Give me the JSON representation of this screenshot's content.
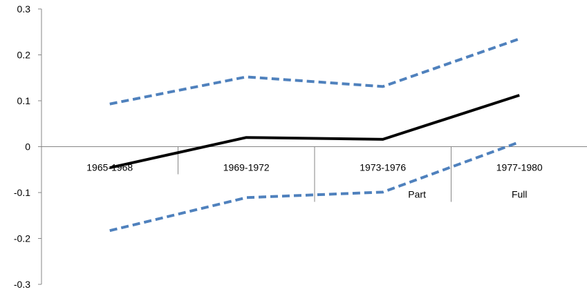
{
  "chart_data": {
    "type": "line",
    "categories": [
      "1965-1968",
      "1969-1972",
      "1973-1976",
      "1977-1980"
    ],
    "group_labels": [
      {
        "label": "Part",
        "spans": [
          "1973-1976"
        ]
      },
      {
        "label": "Full",
        "spans": [
          "1977-1980"
        ]
      }
    ],
    "series": [
      {
        "values": [
          0.093,
          0.152,
          0.131,
          0.235
        ],
        "color": "#4F81BD",
        "style": "dashed",
        "role": "upper-bound"
      },
      {
        "values": [
          -0.046,
          0.02,
          0.016,
          0.112
        ],
        "color": "#000000",
        "style": "solid",
        "role": "estimate"
      },
      {
        "values": [
          -0.183,
          -0.111,
          -0.099,
          0.01
        ],
        "color": "#4F81BD",
        "style": "dashed",
        "role": "lower-bound"
      }
    ],
    "ylim": [
      -0.3,
      0.3
    ],
    "yticks": [
      "-0.3",
      "-0.2",
      "-0.1",
      "0",
      "0.1",
      "0.2",
      "0.3"
    ],
    "title": "",
    "xlabel": "",
    "ylabel": "",
    "grid": false,
    "legend": "none"
  }
}
